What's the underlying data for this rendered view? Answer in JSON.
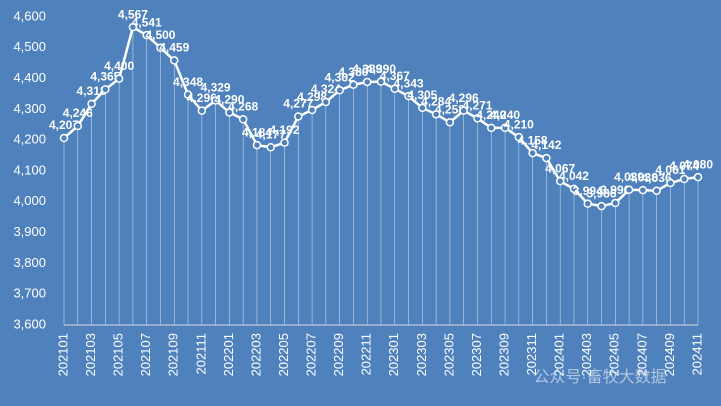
{
  "chart_data": {
    "type": "line",
    "watermark": "公众号·畜牧大数据",
    "categories": [
      "202101",
      null,
      "202103",
      null,
      "202105",
      null,
      "202107",
      null,
      "202109",
      null,
      "202111",
      null,
      "202201",
      null,
      "202203",
      null,
      "202205",
      null,
      "202207",
      null,
      "202209",
      null,
      "202211",
      null,
      "202301",
      null,
      "202303",
      null,
      "202305",
      null,
      "202307",
      null,
      "202309",
      null,
      "202311",
      null,
      "202401",
      null,
      "202403",
      null,
      "202405",
      null,
      "202407",
      null,
      "202409",
      null,
      "202411"
    ],
    "series": [
      {
        "color": "#ffffff",
        "values": [
          4207,
          4246,
          4318,
          4365,
          4400,
          4567,
          4541,
          4500,
          4459,
          4348,
          4296,
          4329,
          4290,
          4268,
          4184,
          4177,
          4192,
          4277,
          4298,
          4324,
          4362,
          4380,
          4389,
          4390,
          4367,
          4343,
          4305,
          4284,
          4258,
          4296,
          4271,
          4240,
          4240,
          4210,
          4158,
          4142,
          4067,
          4042,
          3994,
          3986,
          3996,
          4039,
          4038,
          4036,
          4061,
          4074,
          4080
        ],
        "value_labels": [
          "4,207",
          "4,246",
          "4,318",
          "4,365",
          "4,400",
          "4,567",
          "4,541",
          "4,500",
          "4,459",
          "4,348",
          "4,296",
          "4,329",
          "4,290",
          "4,268",
          "4,184",
          "4,177",
          "4,192",
          "4,277",
          "4,298",
          "4,324",
          "4,362",
          "4,380",
          "4,389",
          "4,390",
          "4,367",
          "4,343",
          "4,305",
          "4,284",
          "4,258",
          "4,296",
          "4,271",
          "4,240",
          "4,240",
          "4,210",
          "4,158",
          "4,142",
          "4,067",
          "4,042",
          "3,994",
          "3,986",
          "3,996",
          "4,039",
          "4,038",
          "4,036",
          "4,061",
          "4,074",
          "4,080"
        ]
      }
    ],
    "ylim": [
      3600,
      4600
    ],
    "yticks": [
      {
        "value": 3600,
        "label": "3,600"
      },
      {
        "value": 3700,
        "label": "3,700"
      },
      {
        "value": 3800,
        "label": "3,800"
      },
      {
        "value": 3900,
        "label": "3,900"
      },
      {
        "value": 4000,
        "label": "4,000"
      },
      {
        "value": 4100,
        "label": "4,100"
      },
      {
        "value": 4200,
        "label": "4,200"
      },
      {
        "value": 4300,
        "label": "4,300"
      },
      {
        "value": 4400,
        "label": "4,400"
      },
      {
        "value": 4500,
        "label": "4,500"
      },
      {
        "value": 4600,
        "label": "4,600"
      }
    ],
    "drop_lines": true
  }
}
